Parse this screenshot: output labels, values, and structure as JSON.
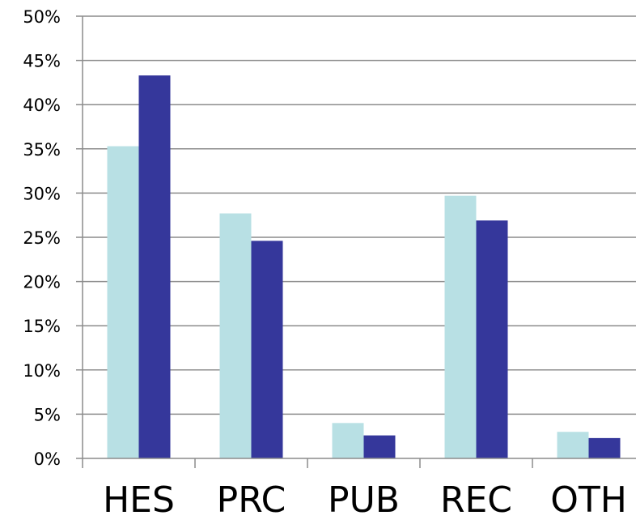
{
  "chart_data": {
    "type": "bar",
    "title": "",
    "xlabel": "",
    "ylabel": "",
    "categories": [
      "HES",
      "PRC",
      "PUB",
      "REC",
      "OTH"
    ],
    "series": [
      {
        "color": "#b8e0e4",
        "values": [
          35.3,
          27.7,
          4.0,
          29.7,
          3.0
        ]
      },
      {
        "color": "#35379b",
        "values": [
          43.3,
          24.6,
          2.6,
          26.9,
          2.3
        ]
      }
    ],
    "ylim": [
      0,
      50
    ],
    "ytick_step": 5,
    "ytick_labels": [
      "0%",
      "5%",
      "10%",
      "15%",
      "20%",
      "25%",
      "30%",
      "35%",
      "40%",
      "45%",
      "50%"
    ],
    "grid": true,
    "legend": "none"
  }
}
